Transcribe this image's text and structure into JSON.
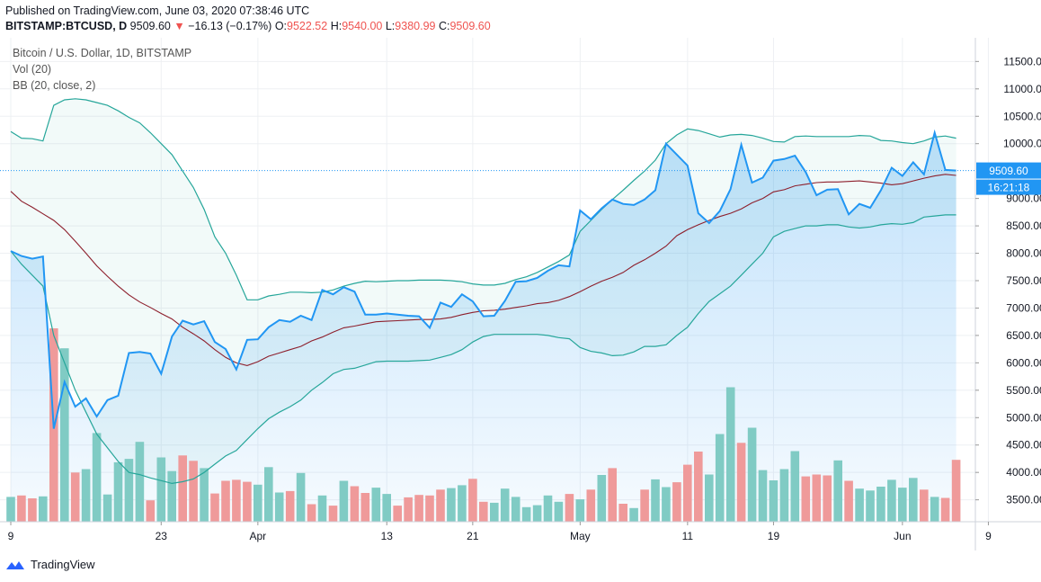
{
  "header": {
    "published": "Published on TradingView.com, June 03, 2020 07:38:46 UTC",
    "symbol": "BITSTAMP:BTCUSD, D",
    "last": "9509.60",
    "change": "−16.13 (−0.17%)",
    "o_label": "O:",
    "o_val": "9522.52",
    "h_label": "H:",
    "h_val": "9540.00",
    "l_label": "L:",
    "l_val": "9380.99",
    "c_label": "C:",
    "c_val": "9509.60"
  },
  "legend": {
    "title": "Bitcoin / U.S. Dollar, 1D, BITSTAMP",
    "vol": "Vol (20)",
    "bb": "BB (20, close, 2)"
  },
  "footer": {
    "brand": "TradingView"
  },
  "colors": {
    "price": "#2196f3",
    "bb_band": "#26a69a",
    "bb_basis": "#8d1f2c",
    "vol_up": "#80cbc4",
    "vol_down": "#ef9a9a",
    "badge_price": "#2196f3",
    "grid": "#eef0f3"
  },
  "chart_data": {
    "type": "line",
    "title": "Bitcoin / U.S. Dollar, 1D, BITSTAMP",
    "y_range": [
      3100,
      11800
    ],
    "y_ticks": [
      "11500.00",
      "11000.00",
      "10500.00",
      "10000.00",
      "9000.00",
      "8500.00",
      "8000.00",
      "7500.00",
      "7000.00",
      "6500.00",
      "6000.00",
      "5500.00",
      "5000.00",
      "4500.00",
      "4000.00",
      "3500.00"
    ],
    "x_range": [
      -1,
      72
    ],
    "x_ticks": [
      {
        "label": "9",
        "i": 0
      },
      {
        "label": "23",
        "i": 14
      },
      {
        "label": "Apr",
        "i": 23
      },
      {
        "label": "13",
        "i": 35
      },
      {
        "label": "21",
        "i": 43
      },
      {
        "label": "May",
        "i": 53
      },
      {
        "label": "11",
        "i": 63
      },
      {
        "label": "19",
        "i": 71
      },
      {
        "label": "Jun",
        "i": 83
      },
      {
        "label": "9",
        "i": 91
      }
    ],
    "last_price": {
      "value": 9509.6,
      "label": "9509.60",
      "countdown": "16:21:18"
    },
    "close": [
      8040,
      7950,
      7900,
      7940,
      4800,
      5650,
      5200,
      5350,
      5020,
      5320,
      5400,
      6180,
      6200,
      6170,
      5800,
      6480,
      6770,
      6700,
      6760,
      6380,
      6250,
      5880,
      6420,
      6430,
      6650,
      6780,
      6750,
      6860,
      6780,
      7330,
      7250,
      7380,
      7300,
      6880,
      6880,
      6900,
      6880,
      6860,
      6850,
      6640,
      7100,
      7020,
      7250,
      7120,
      6850,
      6860,
      7130,
      7480,
      7490,
      7550,
      7680,
      7780,
      7760,
      8780,
      8620,
      8820,
      8980,
      8900,
      8880,
      8980,
      9150,
      10000,
      9800,
      9600,
      8730,
      8550,
      8770,
      9170,
      9980,
      9290,
      9380,
      9690,
      9720,
      9780,
      9480,
      9060,
      9160,
      9170,
      8710,
      8900,
      8830,
      9150,
      9560,
      9410,
      9660,
      9440,
      10200,
      9520,
      9510
    ],
    "bb_upper": [
      10220,
      10100,
      10090,
      10050,
      10700,
      10800,
      10820,
      10800,
      10750,
      10700,
      10600,
      10480,
      10380,
      10200,
      10000,
      9800,
      9500,
      9200,
      8800,
      8300,
      8000,
      7600,
      7150,
      7150,
      7220,
      7250,
      7290,
      7290,
      7280,
      7290,
      7330,
      7400,
      7450,
      7490,
      7480,
      7490,
      7500,
      7500,
      7510,
      7510,
      7510,
      7500,
      7480,
      7440,
      7420,
      7420,
      7450,
      7520,
      7570,
      7650,
      7750,
      7850,
      7970,
      8400,
      8600,
      8800,
      8980,
      9150,
      9330,
      9500,
      9700,
      10000,
      10160,
      10270,
      10240,
      10180,
      10120,
      10160,
      10170,
      10150,
      10100,
      10040,
      10030,
      10130,
      10140,
      10130,
      10130,
      10130,
      10130,
      10150,
      10140,
      10060,
      10050,
      10020,
      10000,
      10050,
      10120,
      10140,
      10100
    ],
    "bb_lower": [
      8040,
      7800,
      7600,
      7400,
      6500,
      6000,
      5500,
      5100,
      4700,
      4450,
      4200,
      4000,
      3960,
      3900,
      3850,
      3800,
      3830,
      3880,
      4000,
      4150,
      4300,
      4400,
      4600,
      4800,
      4980,
      5100,
      5200,
      5320,
      5500,
      5640,
      5800,
      5880,
      5900,
      5960,
      6020,
      6030,
      6030,
      6030,
      6040,
      6050,
      6100,
      6150,
      6240,
      6380,
      6480,
      6520,
      6520,
      6520,
      6520,
      6520,
      6500,
      6460,
      6440,
      6280,
      6210,
      6180,
      6130,
      6140,
      6200,
      6300,
      6300,
      6330,
      6500,
      6650,
      6900,
      7120,
      7260,
      7400,
      7600,
      7800,
      8000,
      8300,
      8400,
      8450,
      8500,
      8500,
      8520,
      8520,
      8480,
      8460,
      8480,
      8520,
      8540,
      8530,
      8560,
      8660,
      8680,
      8700,
      8700
    ],
    "bb_basis": [
      9130,
      8950,
      8840,
      8720,
      8600,
      8430,
      8220,
      8000,
      7770,
      7580,
      7400,
      7240,
      7110,
      7010,
      6900,
      6800,
      6650,
      6530,
      6400,
      6240,
      6100,
      6000,
      5950,
      6020,
      6120,
      6180,
      6240,
      6300,
      6400,
      6470,
      6560,
      6640,
      6670,
      6710,
      6750,
      6760,
      6770,
      6780,
      6790,
      6790,
      6800,
      6830,
      6880,
      6920,
      6950,
      6960,
      6980,
      7010,
      7040,
      7080,
      7100,
      7140,
      7210,
      7300,
      7400,
      7490,
      7560,
      7650,
      7780,
      7880,
      8000,
      8130,
      8320,
      8430,
      8520,
      8600,
      8670,
      8730,
      8810,
      8920,
      9000,
      9120,
      9160,
      9230,
      9260,
      9290,
      9300,
      9300,
      9310,
      9320,
      9300,
      9280,
      9250,
      9270,
      9320,
      9370,
      9410,
      9440,
      9420
    ],
    "volume": [
      5.1,
      5.4,
      4.8,
      5.2,
      39.7,
      35.6,
      10.1,
      10.8,
      18.2,
      5.6,
      12.2,
      12.9,
      16.4,
      4.4,
      13.2,
      10.4,
      13.6,
      12.5,
      11.0,
      5.8,
      8.4,
      8.6,
      8.2,
      7.6,
      11.2,
      6.0,
      6.3,
      10.0,
      3.6,
      5.4,
      3.3,
      8.4,
      7.3,
      5.9,
      7.0,
      5.7,
      3.3,
      5.0,
      5.5,
      5.4,
      6.6,
      6.9,
      7.5,
      8.8,
      4.1,
      3.9,
      6.8,
      5.1,
      3.0,
      3.4,
      5.4,
      4.1,
      5.7,
      4.6,
      6.6,
      9.6,
      11.0,
      3.7,
      2.8,
      6.6,
      8.7,
      7.1,
      8.1,
      11.7,
      14.4,
      9.7,
      18.0,
      27.6,
      16.2,
      19.3,
      10.6,
      8.5,
      10.8,
      14.5,
      9.3,
      9.7,
      9.5,
      12.6,
      8.4,
      6.8,
      6.4,
      7.2,
      8.6,
      7.0,
      9.0,
      6.6,
      5.1,
      4.9,
      12.7
    ],
    "volume_up": [
      true,
      false,
      false,
      true,
      false,
      true,
      false,
      true,
      true,
      true,
      true,
      true,
      true,
      false,
      true,
      true,
      false,
      false,
      true,
      false,
      false,
      false,
      false,
      true,
      true,
      true,
      false,
      true,
      false,
      true,
      false,
      true,
      false,
      false,
      true,
      true,
      false,
      false,
      false,
      false,
      false,
      true,
      true,
      false,
      false,
      true,
      true,
      true,
      true,
      true,
      true,
      true,
      false,
      true,
      false,
      true,
      false,
      false,
      true,
      false,
      true,
      true,
      false,
      false,
      false,
      true,
      true,
      true,
      false,
      true,
      true,
      true,
      true,
      true,
      false,
      false,
      false,
      true,
      false,
      true,
      true,
      true,
      true,
      true,
      true,
      false,
      true,
      false,
      false
    ],
    "volume_range": [
      0,
      60
    ]
  }
}
